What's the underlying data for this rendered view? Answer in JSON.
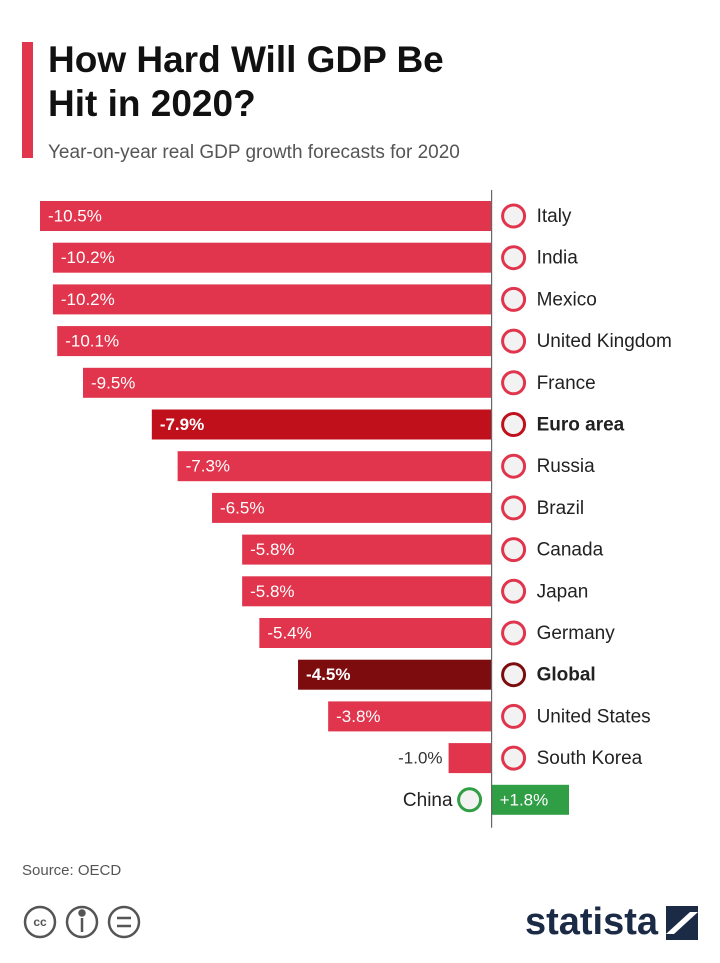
{
  "chart_data": {
    "type": "barh",
    "title": "How Hard Will GDP Be Hit in 2020?",
    "subtitle": "Year-on-year real GDP growth forecasts for 2020",
    "source": "Source: OECD",
    "brand": "statista",
    "categories": [
      "Italy",
      "India",
      "Mexico",
      "United Kingdom",
      "France",
      "Euro area",
      "Russia",
      "Brazil",
      "Canada",
      "Japan",
      "Germany",
      "Global",
      "United States",
      "South Korea",
      "China"
    ],
    "values": [
      -10.5,
      -10.2,
      -10.2,
      -10.1,
      -9.5,
      -7.9,
      -7.3,
      -6.5,
      -5.8,
      -5.8,
      -5.4,
      -4.5,
      -3.8,
      -1.0,
      1.8
    ],
    "value_labels": [
      "-10.5%",
      "-10.2%",
      "-10.2%",
      "-10.1%",
      "-9.5%",
      "-7.9%",
      "-7.3%",
      "-6.5%",
      "-5.8%",
      "-5.8%",
      "-5.4%",
      "-4.5%",
      "-3.8%",
      "-1.0%",
      "+1.8%"
    ],
    "colors": [
      "#e0354c",
      "#e0354c",
      "#e0354c",
      "#e0354c",
      "#e0354c",
      "#c0101c",
      "#e0354c",
      "#e0354c",
      "#e0354c",
      "#e0354c",
      "#e0354c",
      "#7d0c0f",
      "#e0354c",
      "#e0354c",
      "#2f9e44"
    ],
    "emphasis": [
      false,
      false,
      false,
      false,
      false,
      true,
      false,
      false,
      false,
      false,
      false,
      true,
      false,
      false,
      false
    ],
    "xlim": [
      -10.5,
      1.8
    ]
  }
}
